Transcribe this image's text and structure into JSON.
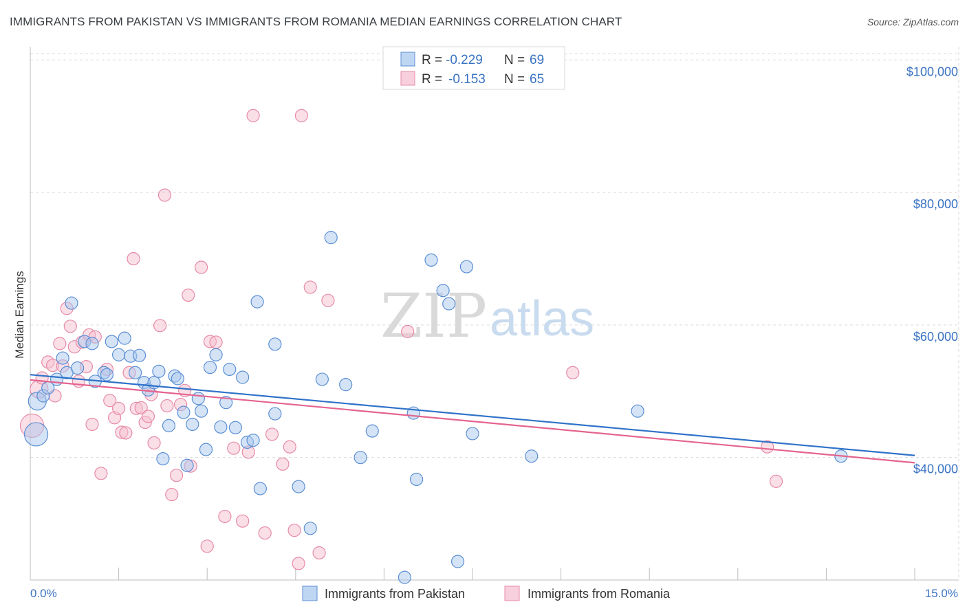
{
  "title": "IMMIGRANTS FROM PAKISTAN VS IMMIGRANTS FROM ROMANIA MEDIAN EARNINGS CORRELATION CHART",
  "source": "Source: ZipAtlas.com",
  "watermark": {
    "zip": "ZIP",
    "atlas": "atlas"
  },
  "legend": {
    "r_label": "R =",
    "n_label": "N =",
    "rows": [
      {
        "name": "Immigrants from Pakistan",
        "r": "-0.229",
        "n": "69"
      },
      {
        "name": "Immigrants from Romania",
        "r": "-0.153",
        "n": "65"
      }
    ]
  },
  "colors": {
    "pakistan_fill": "#a9c8ee",
    "pakistan_stroke": "#5b8fd4",
    "pakistan_line": "#2f72c9",
    "romania_fill": "#f6bfd0",
    "romania_stroke": "#e68aa8",
    "romania_line": "#e4648f",
    "tick_text": "#3a73c4"
  },
  "chart_data": {
    "type": "scatter",
    "title": "IMMIGRANTS FROM PAKISTAN VS IMMIGRANTS FROM ROMANIA MEDIAN EARNINGS CORRELATION CHART",
    "xlabel": "",
    "ylabel": "Median Earnings",
    "xlim": [
      0,
      15
    ],
    "ylim": [
      21500,
      102000
    ],
    "x_tick_labels": [
      "0.0%",
      "15.0%"
    ],
    "y_ticks": [
      {
        "value": 40000,
        "label": "$40,000"
      },
      {
        "value": 60000,
        "label": "$60,000"
      },
      {
        "value": 80000,
        "label": "$80,000"
      },
      {
        "value": 100000,
        "label": "$100,000"
      }
    ],
    "grid": true,
    "series": [
      {
        "name": "Immigrants from Pakistan",
        "trend": {
          "x": [
            0.0,
            15.0
          ],
          "y": [
            52500,
            40300
          ]
        },
        "points": [
          {
            "x": 0.1,
            "y": 43500,
            "s": 3
          },
          {
            "x": 0.12,
            "y": 48500,
            "s": 2
          },
          {
            "x": 0.22,
            "y": 49300,
            "s": 1
          },
          {
            "x": 0.3,
            "y": 50500,
            "s": 1
          },
          {
            "x": 0.45,
            "y": 51800,
            "s": 1
          },
          {
            "x": 0.55,
            "y": 55000,
            "s": 1
          },
          {
            "x": 0.62,
            "y": 52800,
            "s": 1
          },
          {
            "x": 0.7,
            "y": 63300,
            "s": 1
          },
          {
            "x": 0.8,
            "y": 53500,
            "s": 1
          },
          {
            "x": 0.92,
            "y": 57500,
            "s": 1
          },
          {
            "x": 1.05,
            "y": 57200,
            "s": 1
          },
          {
            "x": 1.1,
            "y": 51500,
            "s": 1
          },
          {
            "x": 1.25,
            "y": 52800,
            "s": 1
          },
          {
            "x": 1.3,
            "y": 52500,
            "s": 1
          },
          {
            "x": 1.38,
            "y": 57500,
            "s": 1
          },
          {
            "x": 1.5,
            "y": 55500,
            "s": 1
          },
          {
            "x": 1.6,
            "y": 58000,
            "s": 1
          },
          {
            "x": 1.7,
            "y": 55300,
            "s": 1
          },
          {
            "x": 1.85,
            "y": 55400,
            "s": 1
          },
          {
            "x": 1.78,
            "y": 52800,
            "s": 1
          },
          {
            "x": 1.93,
            "y": 51300,
            "s": 1
          },
          {
            "x": 2.0,
            "y": 50200,
            "s": 1
          },
          {
            "x": 2.1,
            "y": 51300,
            "s": 1
          },
          {
            "x": 2.18,
            "y": 53000,
            "s": 1
          },
          {
            "x": 2.25,
            "y": 39800,
            "s": 1
          },
          {
            "x": 2.35,
            "y": 44800,
            "s": 1
          },
          {
            "x": 2.45,
            "y": 52300,
            "s": 1
          },
          {
            "x": 2.5,
            "y": 51900,
            "s": 1
          },
          {
            "x": 2.6,
            "y": 46800,
            "s": 1
          },
          {
            "x": 2.66,
            "y": 38800,
            "s": 1
          },
          {
            "x": 2.75,
            "y": 45000,
            "s": 1
          },
          {
            "x": 2.85,
            "y": 48900,
            "s": 1
          },
          {
            "x": 2.9,
            "y": 47000,
            "s": 1
          },
          {
            "x": 2.98,
            "y": 41200,
            "s": 1
          },
          {
            "x": 3.05,
            "y": 53600,
            "s": 1
          },
          {
            "x": 3.15,
            "y": 55500,
            "s": 1
          },
          {
            "x": 3.23,
            "y": 44600,
            "s": 1
          },
          {
            "x": 3.32,
            "y": 48300,
            "s": 1
          },
          {
            "x": 3.38,
            "y": 53300,
            "s": 1
          },
          {
            "x": 3.48,
            "y": 44500,
            "s": 1
          },
          {
            "x": 3.6,
            "y": 52100,
            "s": 1
          },
          {
            "x": 3.68,
            "y": 42300,
            "s": 1
          },
          {
            "x": 3.78,
            "y": 42600,
            "s": 1
          },
          {
            "x": 3.85,
            "y": 63500,
            "s": 1
          },
          {
            "x": 3.9,
            "y": 35300,
            "s": 1
          },
          {
            "x": 4.15,
            "y": 57100,
            "s": 1
          },
          {
            "x": 4.15,
            "y": 46600,
            "s": 1
          },
          {
            "x": 4.55,
            "y": 35600,
            "s": 1
          },
          {
            "x": 4.75,
            "y": 29300,
            "s": 1
          },
          {
            "x": 4.95,
            "y": 51800,
            "s": 1
          },
          {
            "x": 5.1,
            "y": 73200,
            "s": 1
          },
          {
            "x": 5.35,
            "y": 51000,
            "s": 1
          },
          {
            "x": 5.6,
            "y": 40000,
            "s": 1
          },
          {
            "x": 5.8,
            "y": 44000,
            "s": 1
          },
          {
            "x": 6.35,
            "y": 21900,
            "s": 1
          },
          {
            "x": 6.5,
            "y": 46700,
            "s": 1
          },
          {
            "x": 6.55,
            "y": 36700,
            "s": 1
          },
          {
            "x": 6.8,
            "y": 69800,
            "s": 1
          },
          {
            "x": 7.0,
            "y": 65200,
            "s": 1
          },
          {
            "x": 7.1,
            "y": 63200,
            "s": 1
          },
          {
            "x": 7.25,
            "y": 24300,
            "s": 1
          },
          {
            "x": 7.4,
            "y": 68800,
            "s": 1
          },
          {
            "x": 7.5,
            "y": 43600,
            "s": 1
          },
          {
            "x": 8.5,
            "y": 40200,
            "s": 1
          },
          {
            "x": 10.3,
            "y": 47000,
            "s": 1
          },
          {
            "x": 13.75,
            "y": 40200,
            "s": 1
          }
        ]
      },
      {
        "name": "Immigrants from Romania",
        "trend": {
          "x": [
            0.0,
            15.0
          ],
          "y": [
            51700,
            39200
          ]
        },
        "points": [
          {
            "x": 0.03,
            "y": 44800,
            "s": 3
          },
          {
            "x": 0.15,
            "y": 50300,
            "s": 2
          },
          {
            "x": 0.2,
            "y": 52000,
            "s": 1
          },
          {
            "x": 0.3,
            "y": 54400,
            "s": 1
          },
          {
            "x": 0.38,
            "y": 53900,
            "s": 1
          },
          {
            "x": 0.42,
            "y": 49300,
            "s": 1
          },
          {
            "x": 0.5,
            "y": 57200,
            "s": 1
          },
          {
            "x": 0.55,
            "y": 53800,
            "s": 1
          },
          {
            "x": 0.62,
            "y": 62500,
            "s": 1
          },
          {
            "x": 0.68,
            "y": 59800,
            "s": 1
          },
          {
            "x": 0.75,
            "y": 56700,
            "s": 1
          },
          {
            "x": 0.82,
            "y": 51500,
            "s": 1
          },
          {
            "x": 0.88,
            "y": 57400,
            "s": 1
          },
          {
            "x": 0.95,
            "y": 53700,
            "s": 1
          },
          {
            "x": 1.0,
            "y": 58500,
            "s": 1
          },
          {
            "x": 1.05,
            "y": 45000,
            "s": 1
          },
          {
            "x": 1.1,
            "y": 58200,
            "s": 1
          },
          {
            "x": 1.2,
            "y": 37600,
            "s": 1
          },
          {
            "x": 1.3,
            "y": 53300,
            "s": 1
          },
          {
            "x": 1.35,
            "y": 48600,
            "s": 1
          },
          {
            "x": 1.43,
            "y": 46000,
            "s": 1
          },
          {
            "x": 1.5,
            "y": 47400,
            "s": 1
          },
          {
            "x": 1.55,
            "y": 43800,
            "s": 1
          },
          {
            "x": 1.62,
            "y": 43700,
            "s": 1
          },
          {
            "x": 1.68,
            "y": 52800,
            "s": 1
          },
          {
            "x": 1.75,
            "y": 70000,
            "s": 1
          },
          {
            "x": 1.8,
            "y": 47400,
            "s": 1
          },
          {
            "x": 1.88,
            "y": 47500,
            "s": 1
          },
          {
            "x": 1.95,
            "y": 45300,
            "s": 1
          },
          {
            "x": 2.0,
            "y": 46200,
            "s": 1
          },
          {
            "x": 2.05,
            "y": 49500,
            "s": 1
          },
          {
            "x": 2.1,
            "y": 42200,
            "s": 1
          },
          {
            "x": 2.2,
            "y": 59900,
            "s": 1
          },
          {
            "x": 2.28,
            "y": 79600,
            "s": 1
          },
          {
            "x": 2.32,
            "y": 47800,
            "s": 1
          },
          {
            "x": 2.4,
            "y": 34400,
            "s": 1
          },
          {
            "x": 2.48,
            "y": 37300,
            "s": 1
          },
          {
            "x": 2.55,
            "y": 48000,
            "s": 1
          },
          {
            "x": 2.62,
            "y": 50100,
            "s": 1
          },
          {
            "x": 2.68,
            "y": 64500,
            "s": 1
          },
          {
            "x": 2.72,
            "y": 38700,
            "s": 1
          },
          {
            "x": 2.9,
            "y": 68700,
            "s": 1
          },
          {
            "x": 3.0,
            "y": 26600,
            "s": 1
          },
          {
            "x": 3.05,
            "y": 57500,
            "s": 1
          },
          {
            "x": 3.15,
            "y": 57400,
            "s": 1
          },
          {
            "x": 3.3,
            "y": 31100,
            "s": 1
          },
          {
            "x": 3.45,
            "y": 41400,
            "s": 1
          },
          {
            "x": 3.6,
            "y": 30400,
            "s": 1
          },
          {
            "x": 3.7,
            "y": 40800,
            "s": 1
          },
          {
            "x": 3.78,
            "y": 91600,
            "s": 1
          },
          {
            "x": 3.98,
            "y": 28600,
            "s": 1
          },
          {
            "x": 4.1,
            "y": 43500,
            "s": 1
          },
          {
            "x": 4.28,
            "y": 39000,
            "s": 1
          },
          {
            "x": 4.4,
            "y": 41600,
            "s": 1
          },
          {
            "x": 4.48,
            "y": 29000,
            "s": 1
          },
          {
            "x": 4.55,
            "y": 24000,
            "s": 1
          },
          {
            "x": 4.6,
            "y": 91600,
            "s": 1
          },
          {
            "x": 4.75,
            "y": 65700,
            "s": 1
          },
          {
            "x": 4.9,
            "y": 25600,
            "s": 1
          },
          {
            "x": 5.05,
            "y": 63700,
            "s": 1
          },
          {
            "x": 6.4,
            "y": 59000,
            "s": 1
          },
          {
            "x": 9.2,
            "y": 52800,
            "s": 1
          },
          {
            "x": 12.5,
            "y": 41600,
            "s": 1
          },
          {
            "x": 12.65,
            "y": 36400,
            "s": 1
          }
        ]
      }
    ]
  }
}
